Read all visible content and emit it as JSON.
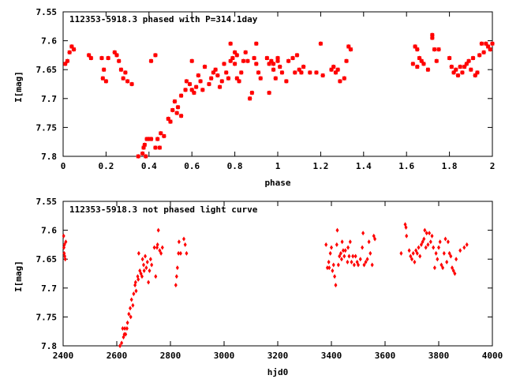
{
  "chart_data": [
    {
      "type": "scatter",
      "title": "112353-5918.3 phased with P=314.1day",
      "xlabel": "phase",
      "ylabel": "I[mag]",
      "xlim": [
        0,
        2
      ],
      "ylim": [
        7.8,
        7.55
      ],
      "y_inverted": true,
      "xticks": [
        "0",
        "0.2",
        "0.4",
        "0.6",
        "0.8",
        "1",
        "1.2",
        "1.4",
        "1.6",
        "1.8",
        "2"
      ],
      "yticks": [
        "7.55",
        "7.6",
        "7.65",
        "7.7",
        "7.75",
        "7.8"
      ],
      "grid": false,
      "marker_color": "#ff0000",
      "points": [
        [
          0.01,
          7.64
        ],
        [
          0.02,
          7.635
        ],
        [
          0.03,
          7.62
        ],
        [
          0.04,
          7.61
        ],
        [
          0.05,
          7.615
        ],
        [
          0.12,
          7.625
        ],
        [
          0.13,
          7.63
        ],
        [
          0.18,
          7.63
        ],
        [
          0.185,
          7.665
        ],
        [
          0.19,
          7.65
        ],
        [
          0.2,
          7.67
        ],
        [
          0.21,
          7.63
        ],
        [
          0.24,
          7.62
        ],
        [
          0.25,
          7.625
        ],
        [
          0.26,
          7.635
        ],
        [
          0.27,
          7.65
        ],
        [
          0.28,
          7.665
        ],
        [
          0.29,
          7.655
        ],
        [
          0.3,
          7.67
        ],
        [
          0.32,
          7.675
        ],
        [
          0.35,
          7.8
        ],
        [
          0.37,
          7.795
        ],
        [
          0.375,
          7.785
        ],
        [
          0.38,
          7.78
        ],
        [
          0.385,
          7.8
        ],
        [
          0.39,
          7.77
        ],
        [
          0.4,
          7.77
        ],
        [
          0.41,
          7.77
        ],
        [
          0.41,
          7.635
        ],
        [
          0.43,
          7.625
        ],
        [
          0.43,
          7.785
        ],
        [
          0.44,
          7.77
        ],
        [
          0.45,
          7.785
        ],
        [
          0.455,
          7.76
        ],
        [
          0.47,
          7.765
        ],
        [
          0.49,
          7.735
        ],
        [
          0.5,
          7.74
        ],
        [
          0.51,
          7.72
        ],
        [
          0.52,
          7.705
        ],
        [
          0.53,
          7.725
        ],
        [
          0.535,
          7.715
        ],
        [
          0.55,
          7.73
        ],
        [
          0.55,
          7.695
        ],
        [
          0.57,
          7.685
        ],
        [
          0.575,
          7.67
        ],
        [
          0.59,
          7.675
        ],
        [
          0.6,
          7.685
        ],
        [
          0.6,
          7.635
        ],
        [
          0.61,
          7.69
        ],
        [
          0.62,
          7.68
        ],
        [
          0.63,
          7.66
        ],
        [
          0.64,
          7.67
        ],
        [
          0.65,
          7.685
        ],
        [
          0.66,
          7.645
        ],
        [
          0.68,
          7.675
        ],
        [
          0.69,
          7.665
        ],
        [
          0.7,
          7.655
        ],
        [
          0.71,
          7.65
        ],
        [
          0.72,
          7.66
        ],
        [
          0.73,
          7.68
        ],
        [
          0.74,
          7.67
        ],
        [
          0.75,
          7.64
        ],
        [
          0.76,
          7.655
        ],
        [
          0.77,
          7.665
        ],
        [
          0.78,
          7.635
        ],
        [
          0.78,
          7.605
        ],
        [
          0.79,
          7.63
        ],
        [
          0.8,
          7.62
        ],
        [
          0.8,
          7.64
        ],
        [
          0.81,
          7.665
        ],
        [
          0.81,
          7.625
        ],
        [
          0.82,
          7.67
        ],
        [
          0.83,
          7.655
        ],
        [
          0.84,
          7.635
        ],
        [
          0.85,
          7.62
        ],
        [
          0.86,
          7.635
        ],
        [
          0.87,
          7.7
        ],
        [
          0.88,
          7.69
        ],
        [
          0.89,
          7.63
        ],
        [
          0.9,
          7.605
        ],
        [
          0.9,
          7.64
        ],
        [
          0.91,
          7.655
        ],
        [
          0.92,
          7.665
        ],
        [
          0.95,
          7.63
        ],
        [
          0.96,
          7.64
        ],
        [
          0.96,
          7.69
        ],
        [
          0.97,
          7.635
        ],
        [
          0.98,
          7.64
        ],
        [
          0.98,
          7.65
        ],
        [
          0.99,
          7.665
        ],
        [
          1.0,
          7.635
        ],
        [
          1.0,
          7.63
        ],
        [
          1.01,
          7.645
        ],
        [
          1.02,
          7.655
        ],
        [
          1.04,
          7.67
        ],
        [
          1.05,
          7.635
        ],
        [
          1.07,
          7.63
        ],
        [
          1.08,
          7.655
        ],
        [
          1.09,
          7.625
        ],
        [
          1.1,
          7.65
        ],
        [
          1.11,
          7.655
        ],
        [
          1.12,
          7.645
        ],
        [
          1.15,
          7.655
        ],
        [
          1.18,
          7.655
        ],
        [
          1.2,
          7.605
        ],
        [
          1.21,
          7.66
        ],
        [
          1.25,
          7.65
        ],
        [
          1.26,
          7.645
        ],
        [
          1.27,
          7.655
        ],
        [
          1.28,
          7.65
        ],
        [
          1.29,
          7.67
        ],
        [
          1.31,
          7.665
        ],
        [
          1.32,
          7.635
        ],
        [
          1.33,
          7.61
        ],
        [
          1.34,
          7.615
        ],
        [
          1.63,
          7.64
        ],
        [
          1.64,
          7.61
        ],
        [
          1.65,
          7.645
        ],
        [
          1.65,
          7.615
        ],
        [
          1.66,
          7.63
        ],
        [
          1.67,
          7.635
        ],
        [
          1.68,
          7.64
        ],
        [
          1.7,
          7.65
        ],
        [
          1.72,
          7.59
        ],
        [
          1.72,
          7.595
        ],
        [
          1.73,
          7.615
        ],
        [
          1.74,
          7.635
        ],
        [
          1.75,
          7.615
        ],
        [
          1.8,
          7.63
        ],
        [
          1.81,
          7.645
        ],
        [
          1.82,
          7.655
        ],
        [
          1.83,
          7.65
        ],
        [
          1.84,
          7.66
        ],
        [
          1.85,
          7.645
        ],
        [
          1.86,
          7.655
        ],
        [
          1.87,
          7.645
        ],
        [
          1.88,
          7.64
        ],
        [
          1.89,
          7.635
        ],
        [
          1.9,
          7.65
        ],
        [
          1.91,
          7.63
        ],
        [
          1.92,
          7.66
        ],
        [
          1.93,
          7.655
        ],
        [
          1.94,
          7.625
        ],
        [
          1.95,
          7.605
        ],
        [
          1.96,
          7.62
        ],
        [
          1.97,
          7.605
        ],
        [
          1.98,
          7.61
        ],
        [
          1.99,
          7.615
        ],
        [
          2.0,
          7.605
        ]
      ]
    },
    {
      "type": "scatter",
      "title": "112353-5918.3 not phased light curve",
      "xlabel": "hjd0",
      "ylabel": "I[mag]",
      "xlim": [
        2400,
        4000
      ],
      "ylim": [
        7.8,
        7.55
      ],
      "y_inverted": true,
      "xticks": [
        "2400",
        "2600",
        "2800",
        "3000",
        "3200",
        "3400",
        "3600",
        "3800",
        "4000"
      ],
      "yticks": [
        "7.55",
        "7.6",
        "7.65",
        "7.7",
        "7.75",
        "7.8"
      ],
      "grid": false,
      "marker_color": "#ff0000",
      "points": [
        [
          2402,
          7.61
        ],
        [
          2403,
          7.63
        ],
        [
          2404,
          7.64
        ],
        [
          2405,
          7.625
        ],
        [
          2406,
          7.645
        ],
        [
          2408,
          7.65
        ],
        [
          2410,
          7.62
        ],
        [
          2612,
          7.8
        ],
        [
          2618,
          7.795
        ],
        [
          2622,
          7.77
        ],
        [
          2625,
          7.785
        ],
        [
          2628,
          7.78
        ],
        [
          2630,
          7.77
        ],
        [
          2633,
          7.78
        ],
        [
          2638,
          7.77
        ],
        [
          2640,
          7.76
        ],
        [
          2645,
          7.745
        ],
        [
          2650,
          7.735
        ],
        [
          2652,
          7.75
        ],
        [
          2655,
          7.72
        ],
        [
          2660,
          7.73
        ],
        [
          2663,
          7.71
        ],
        [
          2668,
          7.695
        ],
        [
          2670,
          7.69
        ],
        [
          2672,
          7.705
        ],
        [
          2678,
          7.68
        ],
        [
          2680,
          7.685
        ],
        [
          2682,
          7.64
        ],
        [
          2686,
          7.67
        ],
        [
          2690,
          7.675
        ],
        [
          2694,
          7.68
        ],
        [
          2696,
          7.65
        ],
        [
          2700,
          7.66
        ],
        [
          2702,
          7.67
        ],
        [
          2706,
          7.645
        ],
        [
          2710,
          7.665
        ],
        [
          2714,
          7.655
        ],
        [
          2718,
          7.69
        ],
        [
          2722,
          7.67
        ],
        [
          2726,
          7.65
        ],
        [
          2730,
          7.66
        ],
        [
          2740,
          7.63
        ],
        [
          2745,
          7.68
        ],
        [
          2750,
          7.63
        ],
        [
          2752,
          7.625
        ],
        [
          2755,
          7.6
        ],
        [
          2760,
          7.635
        ],
        [
          2765,
          7.64
        ],
        [
          2770,
          7.63
        ],
        [
          2820,
          7.695
        ],
        [
          2823,
          7.68
        ],
        [
          2826,
          7.665
        ],
        [
          2830,
          7.64
        ],
        [
          2832,
          7.62
        ],
        [
          2838,
          7.64
        ],
        [
          2850,
          7.615
        ],
        [
          2855,
          7.625
        ],
        [
          2860,
          7.64
        ],
        [
          3380,
          7.625
        ],
        [
          3385,
          7.665
        ],
        [
          3390,
          7.655
        ],
        [
          3392,
          7.665
        ],
        [
          3396,
          7.64
        ],
        [
          3400,
          7.63
        ],
        [
          3404,
          7.67
        ],
        [
          3408,
          7.66
        ],
        [
          3412,
          7.68
        ],
        [
          3416,
          7.695
        ],
        [
          3420,
          7.625
        ],
        [
          3422,
          7.6
        ],
        [
          3426,
          7.66
        ],
        [
          3430,
          7.645
        ],
        [
          3435,
          7.64
        ],
        [
          3438,
          7.65
        ],
        [
          3440,
          7.62
        ],
        [
          3444,
          7.635
        ],
        [
          3448,
          7.645
        ],
        [
          3452,
          7.635
        ],
        [
          3460,
          7.655
        ],
        [
          3462,
          7.63
        ],
        [
          3466,
          7.645
        ],
        [
          3470,
          7.62
        ],
        [
          3475,
          7.655
        ],
        [
          3480,
          7.645
        ],
        [
          3485,
          7.66
        ],
        [
          3490,
          7.645
        ],
        [
          3496,
          7.655
        ],
        [
          3500,
          7.66
        ],
        [
          3508,
          7.65
        ],
        [
          3515,
          7.63
        ],
        [
          3518,
          7.605
        ],
        [
          3522,
          7.66
        ],
        [
          3528,
          7.655
        ],
        [
          3534,
          7.65
        ],
        [
          3540,
          7.62
        ],
        [
          3545,
          7.64
        ],
        [
          3552,
          7.66
        ],
        [
          3558,
          7.61
        ],
        [
          3562,
          7.615
        ],
        [
          3660,
          7.64
        ],
        [
          3675,
          7.59
        ],
        [
          3678,
          7.595
        ],
        [
          3680,
          7.61
        ],
        [
          3690,
          7.635
        ],
        [
          3695,
          7.645
        ],
        [
          3700,
          7.65
        ],
        [
          3705,
          7.64
        ],
        [
          3710,
          7.655
        ],
        [
          3715,
          7.635
        ],
        [
          3720,
          7.64
        ],
        [
          3725,
          7.63
        ],
        [
          3730,
          7.645
        ],
        [
          3735,
          7.625
        ],
        [
          3740,
          7.62
        ],
        [
          3745,
          7.615
        ],
        [
          3748,
          7.6
        ],
        [
          3752,
          7.63
        ],
        [
          3755,
          7.605
        ],
        [
          3760,
          7.625
        ],
        [
          3765,
          7.605
        ],
        [
          3770,
          7.62
        ],
        [
          3775,
          7.61
        ],
        [
          3780,
          7.63
        ],
        [
          3785,
          7.665
        ],
        [
          3790,
          7.64
        ],
        [
          3795,
          7.65
        ],
        [
          3800,
          7.63
        ],
        [
          3805,
          7.62
        ],
        [
          3810,
          7.66
        ],
        [
          3815,
          7.665
        ],
        [
          3820,
          7.64
        ],
        [
          3825,
          7.615
        ],
        [
          3830,
          7.655
        ],
        [
          3835,
          7.62
        ],
        [
          3840,
          7.64
        ],
        [
          3845,
          7.645
        ],
        [
          3850,
          7.665
        ],
        [
          3855,
          7.67
        ],
        [
          3860,
          7.675
        ],
        [
          3865,
          7.65
        ],
        [
          3880,
          7.635
        ],
        [
          3895,
          7.63
        ],
        [
          3905,
          7.625
        ]
      ]
    }
  ]
}
